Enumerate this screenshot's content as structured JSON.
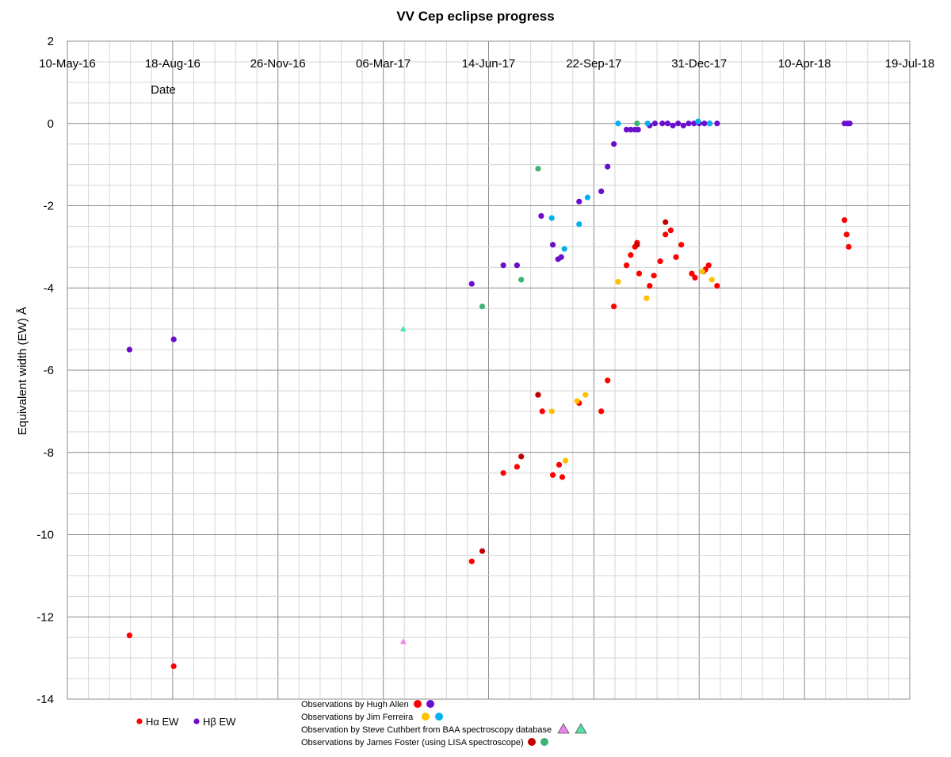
{
  "chart_data": {
    "type": "scatter",
    "title": "VV Cep eclipse progress",
    "xlabel": "Date",
    "ylabel": "Equivalent width (EW)  Å",
    "x_axis": {
      "min": "2016-05-10",
      "max": "2018-07-19",
      "tick_step_days": 100,
      "minor_step_days": 20,
      "position": "top"
    },
    "ylim": [
      -14,
      2
    ],
    "y_ticks": [
      2,
      0,
      -2,
      -4,
      -6,
      -8,
      -10,
      -12,
      -14
    ],
    "y_tick_labels": [
      "2",
      "0",
      "-2",
      "-4",
      "-6",
      "-8",
      "-10",
      "-12",
      "-14"
    ],
    "y_minor_step": 0.5,
    "x_tick_labels": [
      "10-May-16",
      "18-Aug-16",
      "26-Nov-16",
      "06-Mar-17",
      "14-Jun-17",
      "22-Sep-17",
      "31-Dec-17",
      "10-Apr-18",
      "19-Jul-18"
    ],
    "grid": true,
    "legend": {
      "placement": "bottom-left",
      "entries": [
        {
          "label": "Hα EW",
          "color": "#ff0000",
          "marker": "circle"
        },
        {
          "label": "Hβ EW",
          "color": "#6a0dcc",
          "marker": "circle"
        }
      ]
    },
    "notes": [
      {
        "text": "Observations by Hugh Allen",
        "markers": [
          {
            "shape": "circle",
            "color": "#ff0000"
          },
          {
            "shape": "circle",
            "color": "#6a0dcc"
          }
        ]
      },
      {
        "text": "Observations by Jim Ferreira",
        "markers": [
          {
            "shape": "circle",
            "color": "#ffc000"
          },
          {
            "shape": "circle",
            "color": "#00b0f0"
          }
        ]
      },
      {
        "text": "Observation by Steve Cuthbert from BAA spectroscopy database",
        "markers": [
          {
            "shape": "triangle",
            "color": "#ee82ee"
          },
          {
            "shape": "triangle",
            "color": "#50e3a4"
          }
        ]
      },
      {
        "text": "Observations by James Foster (using LISA spectroscope)",
        "markers": [
          {
            "shape": "circle",
            "color": "#c00000"
          },
          {
            "shape": "circle",
            "color": "#3cb371"
          }
        ]
      }
    ],
    "series": [
      {
        "name": "Hα EW (Hugh Allen)",
        "color": "#ff0000",
        "marker": "circle",
        "points": [
          [
            "2016-07-08",
            -12.45
          ],
          [
            "2016-08-19",
            -13.2
          ],
          [
            "2017-05-29",
            -10.65
          ],
          [
            "2017-06-28",
            -8.5
          ],
          [
            "2017-07-11",
            -8.35
          ],
          [
            "2017-07-31",
            -6.6
          ],
          [
            "2017-08-04",
            -7.0
          ],
          [
            "2017-08-14",
            -8.55
          ],
          [
            "2017-08-20",
            -8.3
          ],
          [
            "2017-08-23",
            -8.6
          ],
          [
            "2017-09-08",
            -6.8
          ],
          [
            "2017-09-29",
            -7.0
          ],
          [
            "2017-10-05",
            -6.25
          ],
          [
            "2017-10-11",
            -4.45
          ],
          [
            "2017-10-23",
            -3.45
          ],
          [
            "2017-10-27",
            -3.2
          ],
          [
            "2017-10-31",
            -3.0
          ],
          [
            "2017-11-02",
            -2.9
          ],
          [
            "2017-11-04",
            -3.65
          ],
          [
            "2017-11-14",
            -3.95
          ],
          [
            "2017-11-18",
            -3.7
          ],
          [
            "2017-11-24",
            -3.35
          ],
          [
            "2017-11-29",
            -2.7
          ],
          [
            "2017-12-04",
            -2.6
          ],
          [
            "2017-12-09",
            -3.25
          ],
          [
            "2017-12-14",
            -2.95
          ],
          [
            "2017-12-24",
            -3.65
          ],
          [
            "2017-12-27",
            -3.75
          ],
          [
            "2018-01-04",
            -3.6
          ],
          [
            "2018-01-06",
            -3.55
          ],
          [
            "2018-01-09",
            -3.45
          ],
          [
            "2018-01-17",
            -3.95
          ],
          [
            "2018-05-18",
            -2.35
          ],
          [
            "2018-05-20",
            -2.7
          ],
          [
            "2018-05-22",
            -3.0
          ]
        ]
      },
      {
        "name": "Hβ EW (Hugh Allen)",
        "color": "#6a0dcc",
        "marker": "circle",
        "points": [
          [
            "2016-07-08",
            -5.5
          ],
          [
            "2016-08-19",
            -5.25
          ],
          [
            "2017-05-29",
            -3.9
          ],
          [
            "2017-06-28",
            -3.45
          ],
          [
            "2017-07-11",
            -3.45
          ],
          [
            "2017-08-03",
            -2.25
          ],
          [
            "2017-08-14",
            -2.95
          ],
          [
            "2017-08-19",
            -3.3
          ],
          [
            "2017-08-22",
            -3.25
          ],
          [
            "2017-09-08",
            -1.9
          ],
          [
            "2017-09-29",
            -1.65
          ],
          [
            "2017-10-05",
            -1.05
          ],
          [
            "2017-10-11",
            -0.5
          ],
          [
            "2017-10-23",
            -0.15
          ],
          [
            "2017-10-27",
            -0.15
          ],
          [
            "2017-10-31",
            -0.15
          ],
          [
            "2017-11-03",
            -0.15
          ],
          [
            "2017-11-14",
            -0.05
          ],
          [
            "2017-11-19",
            0.0
          ],
          [
            "2017-11-26",
            0.0
          ],
          [
            "2017-12-01",
            0.0
          ],
          [
            "2017-12-06",
            -0.05
          ],
          [
            "2017-12-11",
            0.0
          ],
          [
            "2017-12-16",
            -0.05
          ],
          [
            "2017-12-21",
            0.0
          ],
          [
            "2017-12-26",
            0.0
          ],
          [
            "2017-12-31",
            0.0
          ],
          [
            "2018-01-05",
            0.0
          ],
          [
            "2018-01-10",
            0.0
          ],
          [
            "2018-01-17",
            0.0
          ],
          [
            "2018-05-18",
            0.0
          ],
          [
            "2018-05-21",
            0.0
          ],
          [
            "2018-05-23",
            0.0
          ]
        ]
      },
      {
        "name": "Hα EW (Jim Ferreira)",
        "color": "#ffc000",
        "marker": "circle",
        "points": [
          [
            "2017-08-13",
            -7.0
          ],
          [
            "2017-08-26",
            -8.2
          ],
          [
            "2017-09-06",
            -6.75
          ],
          [
            "2017-09-14",
            -6.6
          ],
          [
            "2017-10-15",
            -3.85
          ],
          [
            "2017-11-11",
            -4.25
          ],
          [
            "2018-01-03",
            -3.6
          ],
          [
            "2018-01-12",
            -3.8
          ]
        ]
      },
      {
        "name": "Hβ EW (Jim Ferreira)",
        "color": "#00b0f0",
        "marker": "circle",
        "points": [
          [
            "2017-08-13",
            -2.3
          ],
          [
            "2017-08-25",
            -3.05
          ],
          [
            "2017-09-08",
            -2.45
          ],
          [
            "2017-09-16",
            -1.8
          ],
          [
            "2017-10-15",
            0.0
          ],
          [
            "2017-11-12",
            0.0
          ],
          [
            "2017-12-30",
            0.05
          ],
          [
            "2018-01-10",
            0.0
          ]
        ]
      },
      {
        "name": "Hα EW (Steve Cuthbert)",
        "color": "#ee82ee",
        "marker": "triangle",
        "points": [
          [
            "2017-03-25",
            -12.6
          ]
        ]
      },
      {
        "name": "Hβ EW (Steve Cuthbert)",
        "color": "#50e3a4",
        "marker": "triangle",
        "points": [
          [
            "2017-03-25",
            -5.0
          ]
        ]
      },
      {
        "name": "Hα EW (James Foster)",
        "color": "#c00000",
        "marker": "circle",
        "points": [
          [
            "2017-06-08",
            -10.4
          ],
          [
            "2017-07-15",
            -8.1
          ],
          [
            "2017-07-31",
            -6.6
          ],
          [
            "2017-11-02",
            -2.95
          ],
          [
            "2017-11-29",
            -2.4
          ]
        ]
      },
      {
        "name": "Hβ EW (James Foster)",
        "color": "#3cb371",
        "marker": "circle",
        "points": [
          [
            "2017-06-08",
            -4.45
          ],
          [
            "2017-07-15",
            -3.8
          ],
          [
            "2017-07-31",
            -1.1
          ],
          [
            "2017-11-02",
            0.0
          ]
        ]
      }
    ]
  }
}
